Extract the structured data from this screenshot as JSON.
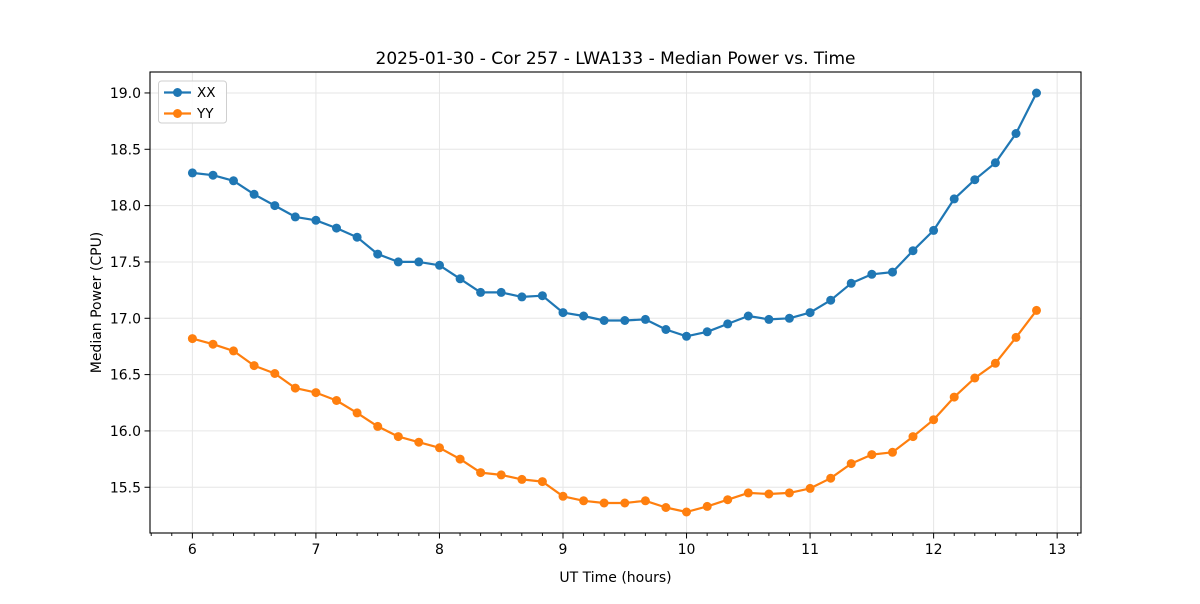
{
  "figure": {
    "background": "#ffffff",
    "spine_color": "#000000",
    "grid_color": "#e6e6e6"
  },
  "chart_data": {
    "type": "line",
    "title": "2025-01-30 - Cor 257 - LWA133 - Median Power vs. Time",
    "xlabel": "UT Time (hours)",
    "ylabel": "Median Power (CPU)",
    "xlim": [
      5.657,
      13.193
    ],
    "ylim": [
      15.094,
      19.186
    ],
    "x_ticks": [
      6,
      7,
      8,
      9,
      10,
      11,
      12,
      13
    ],
    "x_tick_labels": [
      "6",
      "7",
      "8",
      "9",
      "10",
      "11",
      "12",
      "13"
    ],
    "x_minor_tick_step": 0.1667,
    "y_ticks": [
      15.5,
      16.0,
      16.5,
      17.0,
      17.5,
      18.0,
      18.5,
      19.0
    ],
    "y_tick_labels": [
      "15.5",
      "16.0",
      "16.5",
      "17.0",
      "17.5",
      "18.0",
      "18.5",
      "19.0"
    ],
    "grid": true,
    "legend_position": "upper-left",
    "legend": [
      "XX",
      "YY"
    ],
    "x": [
      6.0,
      6.167,
      6.333,
      6.5,
      6.667,
      6.833,
      7.0,
      7.167,
      7.333,
      7.5,
      7.667,
      7.833,
      8.0,
      8.167,
      8.333,
      8.5,
      8.667,
      8.833,
      9.0,
      9.167,
      9.333,
      9.5,
      9.667,
      9.833,
      10.0,
      10.167,
      10.333,
      10.5,
      10.667,
      10.833,
      11.0,
      11.167,
      11.333,
      11.5,
      11.667,
      11.833,
      12.0,
      12.167,
      12.333,
      12.5,
      12.667,
      12.833
    ],
    "series": [
      {
        "name": "XX",
        "color": "#1f77b4",
        "marker": "circle",
        "values": [
          18.29,
          18.27,
          18.22,
          18.1,
          18.0,
          17.9,
          17.87,
          17.8,
          17.72,
          17.57,
          17.5,
          17.5,
          17.47,
          17.35,
          17.23,
          17.23,
          17.19,
          17.2,
          17.05,
          17.02,
          16.98,
          16.98,
          16.99,
          16.9,
          16.84,
          16.88,
          16.95,
          17.02,
          16.99,
          17.0,
          17.05,
          17.16,
          17.31,
          17.39,
          17.41,
          17.6,
          17.78,
          18.06,
          18.23,
          18.38,
          18.64,
          19.0
        ]
      },
      {
        "name": "YY",
        "color": "#ff7f0e",
        "marker": "circle",
        "values": [
          16.82,
          16.77,
          16.71,
          16.58,
          16.51,
          16.38,
          16.34,
          16.27,
          16.16,
          16.04,
          15.95,
          15.9,
          15.85,
          15.75,
          15.63,
          15.61,
          15.57,
          15.55,
          15.42,
          15.38,
          15.36,
          15.36,
          15.38,
          15.32,
          15.28,
          15.33,
          15.39,
          15.45,
          15.44,
          15.45,
          15.49,
          15.58,
          15.71,
          15.79,
          15.81,
          15.95,
          16.1,
          16.3,
          16.47,
          16.6,
          16.83,
          17.07
        ]
      }
    ]
  }
}
